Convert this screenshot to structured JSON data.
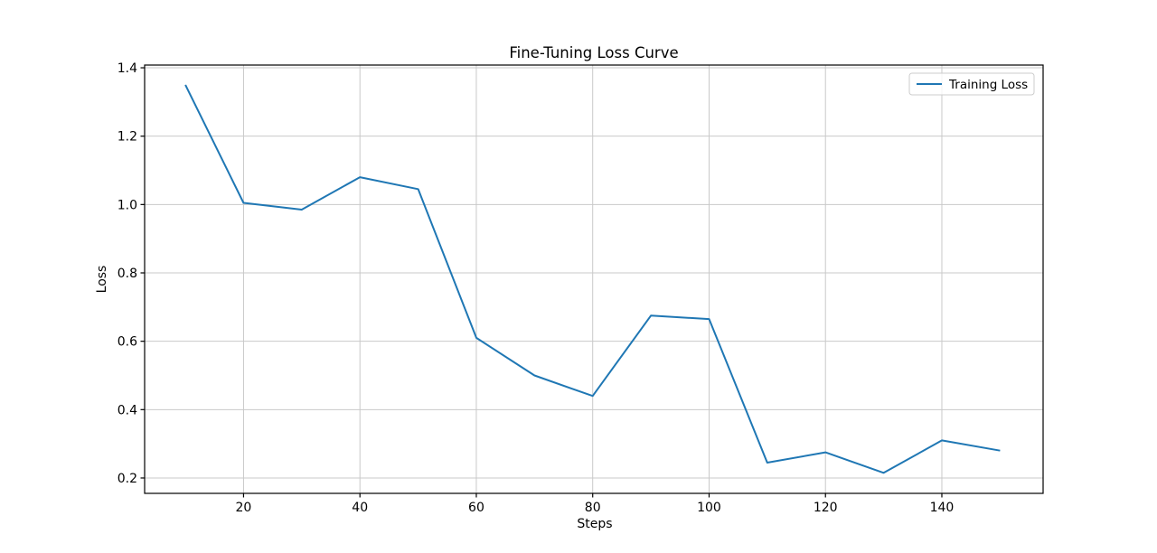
{
  "chart_data": {
    "type": "line",
    "title": "Fine-Tuning Loss Curve",
    "xlabel": "Steps",
    "ylabel": "Loss",
    "x": [
      10,
      20,
      30,
      40,
      50,
      60,
      70,
      80,
      90,
      100,
      110,
      120,
      130,
      140,
      150
    ],
    "series": [
      {
        "name": "Training Loss",
        "values": [
          1.35,
          1.005,
          0.985,
          1.08,
          1.045,
          0.61,
          0.5,
          0.44,
          0.675,
          0.665,
          0.245,
          0.275,
          0.215,
          0.31,
          0.28
        ],
        "color": "#1f77b4"
      }
    ],
    "xticks": [
      20,
      40,
      60,
      80,
      100,
      120,
      140
    ],
    "yticks": [
      0.2,
      0.4,
      0.6,
      0.8,
      1.0,
      1.2,
      1.4
    ],
    "xlim": [
      3,
      157.4
    ],
    "ylim": [
      0.155,
      1.408
    ],
    "grid": true,
    "legend_position": "upper right",
    "colors": {
      "line": "#1f77b4",
      "grid": "#c9c9c9",
      "axis": "#000000",
      "legend_border": "#cccccc"
    }
  }
}
